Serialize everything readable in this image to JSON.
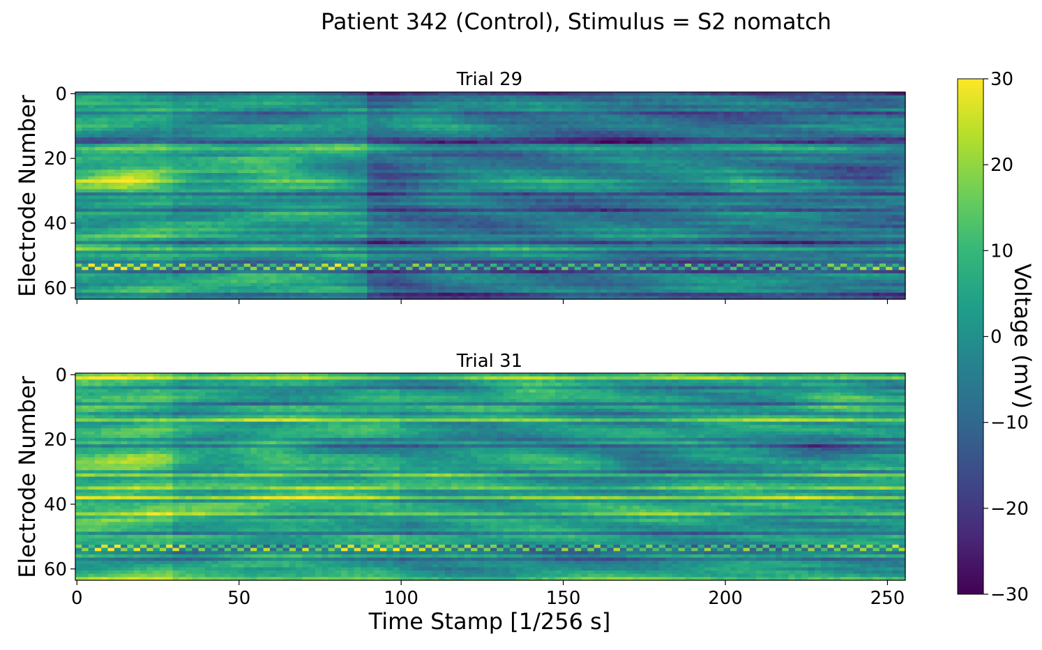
{
  "figure": {
    "title": "Patient 342 (Control), Stimulus = S2 nomatch"
  },
  "chart_data": [
    {
      "type": "heatmap",
      "title": "Trial 29",
      "xlabel": "",
      "ylabel": "Electrode Number",
      "xlim": [
        0,
        256
      ],
      "ylim": [
        64,
        0
      ],
      "n_rows": 64,
      "n_cols": 256,
      "xticks": [
        0,
        50,
        100,
        150,
        200,
        250
      ],
      "xtick_labels_visible": false,
      "yticks": [
        0,
        20,
        40,
        60
      ],
      "ytick_labels": [
        "0",
        "20",
        "40",
        "60"
      ],
      "value_range": [
        -30,
        30
      ],
      "pattern": {
        "segments": [
          {
            "x": [
              0,
              30
            ],
            "mean": 6
          },
          {
            "x": [
              30,
              90
            ],
            "mean": 3
          },
          {
            "x": [
              90,
              256
            ],
            "mean": -5
          }
        ],
        "blobs": [
          {
            "x": 17,
            "y": 27,
            "amp": 12
          },
          {
            "x": 62,
            "y": 24,
            "amp": 9
          },
          {
            "x": 110,
            "y": 6,
            "amp": 9
          },
          {
            "x": 205,
            "y": 28,
            "amp": 8
          },
          {
            "x": 97,
            "y": 29,
            "amp": -14
          },
          {
            "x": 98,
            "y": 57,
            "amp": -10
          },
          {
            "x": 245,
            "y": 27,
            "amp": -12
          }
        ],
        "dark_rows": [
          0,
          6,
          14,
          15,
          31,
          36,
          46,
          52,
          55,
          62,
          63
        ],
        "bright_rows": [
          17,
          27,
          29,
          44,
          48
        ],
        "checker_rows": [
          53,
          54
        ],
        "dark_row_amp": -13,
        "bright_row_amp": 7
      }
    },
    {
      "type": "heatmap",
      "title": "Trial 31",
      "xlabel": "Time Stamp [1/256 s]",
      "ylabel": "Electrode Number",
      "xlim": [
        0,
        256
      ],
      "ylim": [
        64,
        0
      ],
      "n_rows": 64,
      "n_cols": 256,
      "xticks": [
        0,
        50,
        100,
        150,
        200,
        250
      ],
      "xtick_labels": [
        "0",
        "50",
        "100",
        "150",
        "200",
        "250"
      ],
      "yticks": [
        0,
        20,
        40,
        60
      ],
      "ytick_labels": [
        "0",
        "20",
        "40",
        "60"
      ],
      "value_range": [
        -30,
        30
      ],
      "pattern": {
        "segments": [
          {
            "x": [
              0,
              30
            ],
            "mean": 10
          },
          {
            "x": [
              30,
              100
            ],
            "mean": 6
          },
          {
            "x": [
              100,
              256
            ],
            "mean": 3
          }
        ],
        "blobs": [
          {
            "x": 60,
            "y": 26,
            "amp": 10
          },
          {
            "x": 20,
            "y": 28,
            "amp": 7
          },
          {
            "x": 140,
            "y": 6,
            "amp": 8
          },
          {
            "x": 235,
            "y": 6,
            "amp": 9
          },
          {
            "x": 175,
            "y": 27,
            "amp": -10
          },
          {
            "x": 45,
            "y": 20,
            "amp": -6
          },
          {
            "x": 230,
            "y": 22,
            "amp": -7
          }
        ],
        "dark_rows": [
          4,
          9,
          12,
          20,
          22,
          30,
          49,
          55,
          57
        ],
        "bright_rows": [
          1,
          14,
          31,
          35,
          38,
          43,
          63
        ],
        "checker_rows": [
          53,
          54
        ],
        "dark_row_amp": -10,
        "bright_row_amp": 14
      }
    }
  ],
  "colorbar": {
    "label": "Voltage (mV)",
    "min": -30,
    "max": 30,
    "ticks": [
      30,
      20,
      10,
      0,
      -10,
      -20,
      -30
    ],
    "tick_labels": [
      "30",
      "20",
      "10",
      "0",
      "−10",
      "−20",
      "−30"
    ],
    "colormap": "viridis",
    "colors": [
      "#440154",
      "#482878",
      "#3e4989",
      "#31688e",
      "#26828e",
      "#1f9e89",
      "#35b779",
      "#6ece58",
      "#b5de2b",
      "#fde725"
    ]
  }
}
